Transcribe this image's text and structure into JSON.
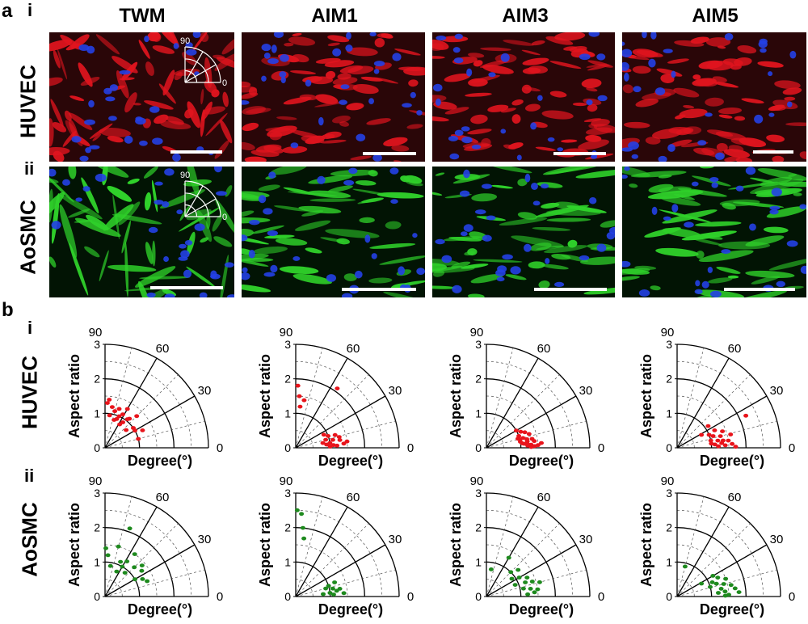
{
  "panel_a": {
    "letter": "a",
    "row_i": "i",
    "row_ii": "ii",
    "columns": [
      "TWM",
      "AIM1",
      "AIM3",
      "AIM5"
    ],
    "rows": [
      "HUVEC",
      "AoSMC"
    ],
    "inset_labels": {
      "top": "90",
      "right": "0"
    },
    "colors": {
      "huvec_cyto": "#e0141e",
      "huvec_bg": "#2a0608",
      "aosmc_cyto": "#2fd12a",
      "aosmc_bg": "#021404",
      "nuclei": "#2440e6",
      "scalebar": "#ffffff"
    }
  },
  "panel_b": {
    "letter": "b",
    "row_i": "i",
    "row_ii": "ii",
    "row_labels": [
      "HUVEC",
      "AoSMC"
    ],
    "ylabel": "Aspect ratio",
    "xlabel": "Degree(°)",
    "angle_labels": [
      "90",
      "60",
      "30",
      "0"
    ],
    "radial_ticks": [
      "0",
      "1",
      "2",
      "3"
    ],
    "point_colors": {
      "HUVEC": "#e8141b",
      "AoSMC": "#1e8a1e"
    }
  },
  "chart_data": [
    {
      "type": "scatter",
      "coords": "polar",
      "row": "HUVEC",
      "condition": "TWM",
      "xlabel": "Degree(°)",
      "ylabel": "Aspect ratio",
      "rlim": [
        0,
        3
      ],
      "thetalim": [
        0,
        90
      ],
      "points": [
        [
          87,
          1.3
        ],
        [
          80,
          1.2
        ],
        [
          75,
          1.1
        ],
        [
          70,
          1.2
        ],
        [
          66,
          1.0
        ],
        [
          60,
          1.3
        ],
        [
          55,
          0.9
        ],
        [
          50,
          1.1
        ],
        [
          45,
          1.3
        ],
        [
          40,
          0.8
        ],
        [
          35,
          1.0
        ],
        [
          30,
          1.0
        ],
        [
          25,
          1.2
        ],
        [
          58,
          0.8
        ],
        [
          52,
          1.05
        ],
        [
          62,
          1.1
        ],
        [
          68,
          0.9
        ],
        [
          72,
          0.85
        ],
        [
          82,
          0.95
        ],
        [
          85,
          1.4
        ],
        [
          15,
          1.0
        ]
      ]
    },
    {
      "type": "scatter",
      "coords": "polar",
      "row": "HUVEC",
      "condition": "AIM1",
      "xlabel": "Degree(°)",
      "ylabel": "Aspect ratio",
      "rlim": [
        0,
        3
      ],
      "thetalim": [
        0,
        90
      ],
      "points": [
        [
          88,
          1.8
        ],
        [
          86,
          1.5
        ],
        [
          84,
          1.2
        ],
        [
          80,
          1.4
        ],
        [
          55,
          2.1
        ],
        [
          25,
          0.9
        ],
        [
          20,
          1.0
        ],
        [
          18,
          1.2
        ],
        [
          15,
          0.9
        ],
        [
          12,
          1.1
        ],
        [
          10,
          1.3
        ],
        [
          8,
          1.0
        ],
        [
          6,
          0.9
        ],
        [
          5,
          1.4
        ],
        [
          4,
          1.1
        ],
        [
          3,
          1.2
        ],
        [
          2,
          1.0
        ],
        [
          10,
          0.8
        ],
        [
          14,
          1.3
        ],
        [
          7,
          1.5
        ]
      ]
    },
    {
      "type": "scatter",
      "coords": "polar",
      "row": "HUVEC",
      "condition": "AIM3",
      "xlabel": "Degree(°)",
      "ylabel": "Aspect ratio",
      "rlim": [
        0,
        3
      ],
      "thetalim": [
        0,
        90
      ],
      "points": [
        [
          30,
          1.0
        ],
        [
          25,
          1.1
        ],
        [
          22,
          1.2
        ],
        [
          20,
          1.0
        ],
        [
          18,
          1.3
        ],
        [
          15,
          1.1
        ],
        [
          12,
          1.2
        ],
        [
          10,
          1.0
        ],
        [
          8,
          1.4
        ],
        [
          6,
          1.1
        ],
        [
          5,
          1.6
        ],
        [
          4,
          1.3
        ],
        [
          3,
          1.2
        ],
        [
          2,
          1.4
        ],
        [
          1,
          1.3
        ],
        [
          9,
          1.2
        ],
        [
          14,
          1.0
        ],
        [
          7,
          1.05
        ],
        [
          3,
          1.5
        ],
        [
          11,
          1.35
        ],
        [
          16,
          0.95
        ],
        [
          5,
          1.2
        ]
      ]
    },
    {
      "type": "scatter",
      "coords": "polar",
      "row": "HUVEC",
      "condition": "AIM5",
      "xlabel": "Degree(°)",
      "ylabel": "Aspect ratio",
      "rlim": [
        0,
        3
      ],
      "thetalim": [
        0,
        90
      ],
      "points": [
        [
          35,
          1.1
        ],
        [
          28,
          0.8
        ],
        [
          25,
          1.2
        ],
        [
          22,
          1.0
        ],
        [
          20,
          1.4
        ],
        [
          18,
          1.1
        ],
        [
          15,
          1.3
        ],
        [
          12,
          1.0
        ],
        [
          10,
          1.2
        ],
        [
          8,
          1.5
        ],
        [
          6,
          1.3
        ],
        [
          5,
          1.1
        ],
        [
          4,
          1.6
        ],
        [
          3,
          1.4
        ],
        [
          2,
          1.2
        ],
        [
          1,
          1.7
        ],
        [
          25,
          2.2
        ],
        [
          14,
          1.6
        ],
        [
          9,
          1.35
        ],
        [
          7,
          1.0
        ]
      ]
    },
    {
      "type": "scatter",
      "coords": "polar",
      "row": "AoSMC",
      "condition": "TWM",
      "xlabel": "Degree(°)",
      "ylabel": "Aspect ratio",
      "rlim": [
        0,
        3
      ],
      "thetalim": [
        0,
        90
      ],
      "points": [
        [
          89,
          1.4
        ],
        [
          86,
          1.2
        ],
        [
          80,
          0.9
        ],
        [
          75,
          1.5
        ],
        [
          70,
          2.1
        ],
        [
          65,
          0.8
        ],
        [
          60,
          1.0
        ],
        [
          55,
          1.5
        ],
        [
          50,
          0.9
        ],
        [
          45,
          1.2
        ],
        [
          40,
          1.4
        ],
        [
          35,
          1.3
        ],
        [
          30,
          1.0
        ],
        [
          25,
          1.2
        ],
        [
          20,
          1.3
        ],
        [
          58,
          1.2
        ],
        [
          66,
          1.1
        ]
      ]
    },
    {
      "type": "scatter",
      "coords": "polar",
      "row": "AoSMC",
      "condition": "AIM1",
      "xlabel": "Degree(°)",
      "ylabel": "Aspect ratio",
      "rlim": [
        0,
        3
      ],
      "thetalim": [
        0,
        90
      ],
      "points": [
        [
          89,
          2.5
        ],
        [
          86,
          2.4
        ],
        [
          84,
          2.0
        ],
        [
          82,
          1.7
        ],
        [
          20,
          1.2
        ],
        [
          18,
          1.0
        ],
        [
          15,
          0.9
        ],
        [
          12,
          1.1
        ],
        [
          10,
          1.3
        ],
        [
          8,
          1.2
        ],
        [
          6,
          1.0
        ],
        [
          5,
          0.8
        ],
        [
          4,
          1.4
        ],
        [
          3,
          1.1
        ]
      ]
    },
    {
      "type": "scatter",
      "coords": "polar",
      "row": "AoSMC",
      "condition": "AIM3",
      "xlabel": "Degree(°)",
      "ylabel": "Aspect ratio",
      "rlim": [
        0,
        3
      ],
      "thetalim": [
        0,
        90
      ],
      "points": [
        [
          45,
          1.0
        ],
        [
          40,
          1.2
        ],
        [
          35,
          0.9
        ],
        [
          30,
          1.1
        ],
        [
          25,
          1.3
        ],
        [
          20,
          1.2
        ],
        [
          18,
          1.4
        ],
        [
          15,
          1.6
        ],
        [
          12,
          1.1
        ],
        [
          10,
          1.3
        ],
        [
          8,
          1.5
        ],
        [
          5,
          1.4
        ],
        [
          3,
          1.2
        ],
        [
          80,
          0.8
        ],
        [
          60,
          1.3
        ],
        [
          22,
          0.9
        ]
      ]
    },
    {
      "type": "scatter",
      "coords": "polar",
      "row": "AoSMC",
      "condition": "AIM5",
      "xlabel": "Degree(°)",
      "ylabel": "Aspect ratio",
      "rlim": [
        0,
        3
      ],
      "thetalim": [
        0,
        90
      ],
      "points": [
        [
          75,
          0.9
        ],
        [
          30,
          1.2
        ],
        [
          25,
          1.3
        ],
        [
          22,
          1.1
        ],
        [
          20,
          1.5
        ],
        [
          18,
          1.2
        ],
        [
          15,
          1.4
        ],
        [
          12,
          1.6
        ],
        [
          10,
          1.3
        ],
        [
          8,
          1.7
        ],
        [
          6,
          1.4
        ],
        [
          5,
          1.2
        ],
        [
          4,
          1.8
        ],
        [
          2,
          1.5
        ],
        [
          1,
          1.4
        ],
        [
          28,
          0.8
        ],
        [
          16,
          1.0
        ]
      ]
    }
  ]
}
